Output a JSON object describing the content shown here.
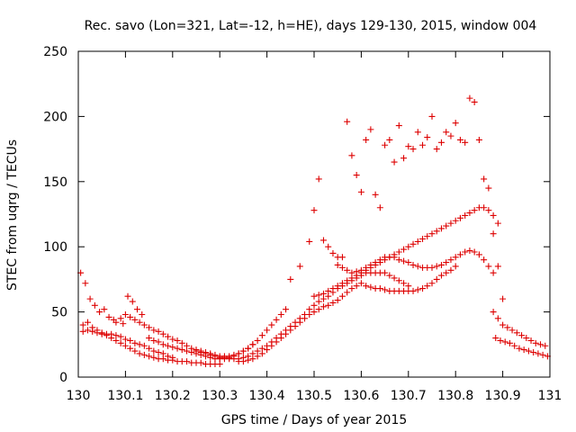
{
  "chart_data": {
    "type": "scatter",
    "title": "Rec. savo (Lon=321, Lat=-12, h=HE), days 129-130, 2015, window 004",
    "xlabel": "GPS time / Days of year 2015",
    "ylabel": "STEC from uqrg / TECUs",
    "xlim": [
      130,
      131
    ],
    "ylim": [
      0,
      250
    ],
    "xticks": [
      130,
      130.1,
      130.2,
      130.3,
      130.4,
      130.5,
      130.6,
      130.7,
      130.8,
      130.9,
      131
    ],
    "xtick_labels": [
      "130",
      "130.1",
      "130.2",
      "130.3",
      "130.4",
      "130.5",
      "130.6",
      "130.7",
      "130.8",
      "130.9",
      "131"
    ],
    "yticks": [
      0,
      50,
      100,
      150,
      200,
      250
    ],
    "ytick_labels": [
      "0",
      "50",
      "100",
      "150",
      "200",
      "250"
    ],
    "grid": false,
    "legend": "none",
    "marker": "+",
    "color": "#dd0000",
    "series": [
      {
        "name": "STEC",
        "x": [
          130.01,
          130.02,
          130.03,
          130.04,
          130.05,
          130.06,
          130.07,
          130.08,
          130.09,
          130.1,
          130.11,
          130.12,
          130.13,
          130.14,
          130.15,
          130.16,
          130.17,
          130.18,
          130.19,
          130.2,
          130.01,
          130.02,
          130.03,
          130.04,
          130.05,
          130.06,
          130.07,
          130.08,
          130.09,
          130.1,
          130.11,
          130.12,
          130.13,
          130.14,
          130.15,
          130.16,
          130.17,
          130.18,
          130.19,
          130.2,
          130.21,
          130.22,
          130.23,
          130.24,
          130.25,
          130.26,
          130.27,
          130.28,
          130.29,
          130.3,
          130.08,
          130.09,
          130.1,
          130.11,
          130.12,
          130.13,
          130.14,
          130.15,
          130.16,
          130.17,
          130.18,
          130.19,
          130.2,
          130.21,
          130.22,
          130.23,
          130.24,
          130.25,
          130.26,
          130.27,
          130.28,
          130.29,
          130.3,
          130.31,
          130.32,
          130.33,
          130.34,
          130.35,
          130.36,
          130.37,
          130.15,
          130.16,
          130.17,
          130.18,
          130.19,
          130.2,
          130.21,
          130.22,
          130.23,
          130.24,
          130.25,
          130.26,
          130.27,
          130.28,
          130.29,
          130.3,
          130.31,
          130.32,
          130.33,
          130.34,
          130.35,
          130.36,
          130.37,
          130.38,
          130.39,
          130.4,
          130.41,
          130.42,
          130.43,
          130.44,
          130.25,
          130.26,
          130.27,
          130.28,
          130.29,
          130.3,
          130.31,
          130.32,
          130.33,
          130.34,
          130.35,
          130.36,
          130.37,
          130.38,
          130.39,
          130.4,
          130.41,
          130.42,
          130.43,
          130.44,
          130.45,
          130.46,
          130.47,
          130.48,
          130.49,
          130.5,
          130.51,
          130.52,
          130.53,
          130.54,
          130.55,
          130.56,
          130.57,
          130.58,
          130.59,
          130.6,
          130.61,
          130.62,
          130.63,
          130.64,
          130.65,
          130.66,
          130.67,
          130.68,
          130.69,
          130.7,
          130.34,
          130.35,
          130.36,
          130.37,
          130.38,
          130.39,
          130.4,
          130.41,
          130.42,
          130.43,
          130.44,
          130.45,
          130.46,
          130.47,
          130.48,
          130.49,
          130.5,
          130.51,
          130.52,
          130.53,
          130.54,
          130.55,
          130.56,
          130.57,
          130.58,
          130.59,
          130.6,
          130.61,
          130.62,
          130.63,
          130.64,
          130.65,
          130.66,
          130.67,
          130.68,
          130.69,
          130.7,
          130.71,
          130.72,
          130.73,
          130.74,
          130.75,
          130.76,
          130.77,
          130.78,
          130.79,
          130.8,
          130.45,
          130.47,
          130.49,
          130.5,
          130.51,
          130.52,
          130.53,
          130.54,
          130.55,
          130.56,
          130.57,
          130.58,
          130.59,
          130.6,
          130.61,
          130.62,
          130.63,
          130.64,
          130.65,
          130.66,
          130.67,
          130.68,
          130.69,
          130.7,
          130.71,
          130.72,
          130.73,
          130.74,
          130.75,
          130.76,
          130.77,
          130.78,
          130.79,
          130.8,
          130.81,
          130.82,
          130.83,
          130.84,
          130.85,
          130.86,
          130.87,
          130.88,
          130.5,
          130.51,
          130.52,
          130.53,
          130.54,
          130.55,
          130.56,
          130.57,
          130.58,
          130.59,
          130.6,
          130.61,
          130.62,
          130.63,
          130.64,
          130.65,
          130.66,
          130.67,
          130.68,
          130.69,
          130.7,
          130.71,
          130.72,
          130.73,
          130.74,
          130.75,
          130.76,
          130.77,
          130.78,
          130.79,
          130.8,
          130.81,
          130.82,
          130.83,
          130.84,
          130.85,
          130.86,
          130.87,
          130.88,
          130.89,
          130.55,
          130.56,
          130.57,
          130.58,
          130.59,
          130.6,
          130.61,
          130.62,
          130.63,
          130.64,
          130.65,
          130.66,
          130.67,
          130.68,
          130.69,
          130.7,
          130.71,
          130.72,
          130.73,
          130.74,
          130.75,
          130.76,
          130.77,
          130.78,
          130.79,
          130.8,
          130.81,
          130.82,
          130.83,
          130.84,
          130.85,
          130.86,
          130.87,
          130.88,
          130.89,
          130.9,
          130.88,
          130.89,
          130.9,
          130.91,
          130.92,
          130.93,
          130.94,
          130.95,
          130.96,
          130.97,
          130.98,
          130.99,
          130.885,
          130.895,
          130.905,
          130.915,
          130.925,
          130.935,
          130.945,
          130.955,
          130.965,
          130.975,
          130.985,
          130.995,
          130.005,
          130.015,
          130.025,
          130.035,
          130.045,
          130.055,
          130.065,
          130.075,
          130.095,
          130.105,
          130.115,
          130.125,
          130.135
        ],
        "y": [
          40,
          42,
          38,
          36,
          34,
          33,
          33,
          32,
          31,
          29,
          28,
          26,
          25,
          24,
          22,
          20,
          19,
          18,
          16,
          15,
          35,
          36,
          35,
          34,
          33,
          32,
          30,
          28,
          26,
          24,
          22,
          20,
          18,
          17,
          16,
          15,
          14,
          14,
          13,
          13,
          12,
          12,
          12,
          11,
          11,
          11,
          10,
          10,
          10,
          10,
          42,
          45,
          48,
          46,
          44,
          42,
          40,
          38,
          36,
          35,
          33,
          31,
          29,
          28,
          26,
          24,
          22,
          21,
          20,
          19,
          18,
          17,
          16,
          16,
          16,
          17,
          18,
          20,
          22,
          25,
          30,
          28,
          27,
          25,
          24,
          23,
          22,
          21,
          20,
          19,
          18,
          17,
          16,
          15,
          14,
          14,
          14,
          15,
          16,
          18,
          20,
          22,
          25,
          28,
          32,
          36,
          40,
          44,
          48,
          52,
          20,
          19,
          18,
          17,
          16,
          15,
          15,
          14,
          14,
          14,
          15,
          16,
          18,
          20,
          22,
          24,
          27,
          30,
          33,
          36,
          39,
          42,
          45,
          48,
          52,
          55,
          58,
          60,
          62,
          65,
          68,
          70,
          72,
          74,
          76,
          78,
          80,
          80,
          80,
          80,
          80,
          78,
          76,
          74,
          72,
          70,
          12,
          12,
          13,
          14,
          16,
          18,
          21,
          24,
          27,
          30,
          33,
          36,
          39,
          42,
          45,
          48,
          50,
          52,
          54,
          55,
          57,
          59,
          62,
          65,
          68,
          70,
          72,
          70,
          69,
          68,
          68,
          67,
          66,
          66,
          66,
          66,
          66,
          66,
          67,
          68,
          70,
          72,
          75,
          78,
          80,
          82,
          85,
          75,
          85,
          104,
          128,
          152,
          105,
          100,
          95,
          92,
          84,
          82,
          80,
          81,
          82,
          84,
          86,
          88,
          90,
          92,
          92,
          92,
          90,
          89,
          88,
          86,
          85,
          84,
          84,
          84,
          85,
          86,
          88,
          90,
          92,
          94,
          96,
          97,
          96,
          94,
          90,
          85,
          80,
          62,
          63,
          64,
          66,
          68,
          70,
          72,
          74,
          76,
          78,
          80,
          82,
          84,
          86,
          88,
          90,
          92,
          94,
          96,
          98,
          100,
          102,
          104,
          106,
          108,
          110,
          112,
          114,
          116,
          118,
          120,
          122,
          124,
          126,
          128,
          130,
          130,
          128,
          124,
          118,
          86,
          92,
          196,
          170,
          155,
          142,
          182,
          190,
          140,
          130,
          178,
          182,
          165,
          193,
          168,
          177,
          175,
          188,
          178,
          184,
          200,
          175,
          180,
          188,
          185,
          195,
          182,
          180,
          214,
          211,
          182,
          152,
          145,
          110,
          85,
          60,
          50,
          45,
          40,
          38,
          36,
          34,
          32,
          30,
          28,
          26,
          25,
          24,
          30,
          28,
          27,
          26,
          24,
          22,
          21,
          20,
          19,
          18,
          17,
          16,
          80,
          72,
          60,
          55,
          50,
          52,
          46,
          44,
          41,
          62,
          58,
          52,
          48
        ]
      }
    ]
  }
}
